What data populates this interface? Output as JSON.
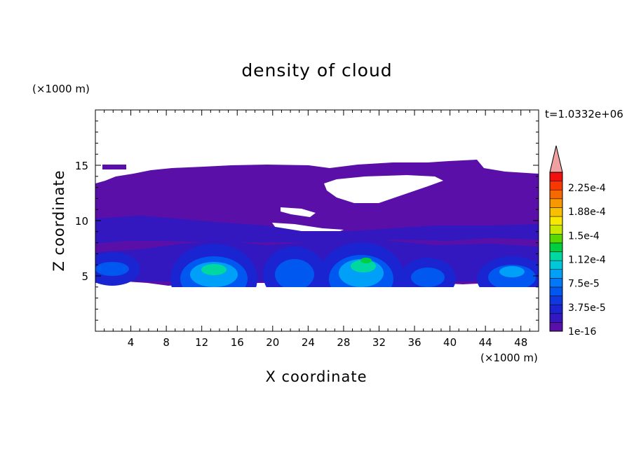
{
  "chart_data": {
    "type": "contour",
    "title": "density of cloud",
    "xlabel": "X coordinate",
    "ylabel": "Z coordinate",
    "x_unit": "(×1000 m)",
    "y_unit": "(×1000 m)",
    "time_label": "t=1.0332e+06",
    "xlim": [
      0,
      50
    ],
    "ylim": [
      0,
      20
    ],
    "x_ticks": [
      4,
      8,
      12,
      16,
      20,
      24,
      28,
      32,
      36,
      40,
      44,
      48
    ],
    "y_ticks": [
      5,
      10,
      15
    ],
    "colorbar": {
      "labels": [
        "2.25e-4",
        "1.88e-4",
        "1.5e-4",
        "1.12e-4",
        "7.5e-5",
        "3.75e-5",
        "1e-16"
      ],
      "colors": [
        "#5a10a8",
        "#3318c0",
        "#1a24d0",
        "#1038e0",
        "#0058f0",
        "#0078f8",
        "#00a0f8",
        "#00c8d8",
        "#00d8a0",
        "#00d040",
        "#58d800",
        "#c8e800",
        "#f8e800",
        "#f8c000",
        "#f89800",
        "#f86800",
        "#f83800",
        "#f01010"
      ],
      "extend_color": "#f0a0a0"
    },
    "cloud_layers": [
      {
        "level": "1e-16",
        "description_z_range": [
          4.5,
          15.3
        ]
      },
      {
        "level": "3.75e-5",
        "description_z_range": [
          4.6,
          7.8
        ]
      },
      {
        "level": "7.5e-5",
        "description_z_range": [
          5.0,
          7.0
        ]
      },
      {
        "level": "1.5e-4",
        "description_z_range": [
          6.0,
          6.8
        ]
      }
    ]
  }
}
